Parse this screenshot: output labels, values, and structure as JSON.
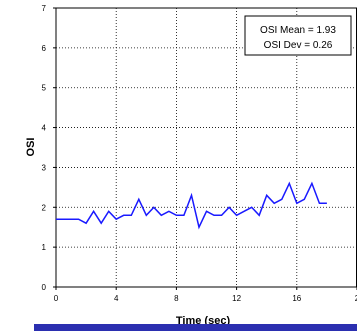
{
  "chart_data": {
    "type": "line",
    "xlabel": "Time (sec)",
    "ylabel": "OSI",
    "xlim": [
      0,
      20
    ],
    "ylim": [
      0,
      7
    ],
    "xticks": [
      "0",
      "4",
      "8",
      "12",
      "16",
      "2"
    ],
    "yticks": [
      "0",
      "1",
      "2",
      "3",
      "4",
      "5",
      "6",
      "7"
    ],
    "grid": true,
    "line_color": "#1a1aff",
    "annotation": {
      "mean_text": "OSI Mean = 1.93",
      "dev_text": "OSI Dev = 0.26"
    },
    "series": [
      {
        "x": [
          0,
          0.5,
          1,
          1.5,
          2,
          2.5,
          3,
          3.5,
          4,
          4.5,
          5,
          5.5,
          6,
          6.5,
          7,
          7.5,
          8,
          8.5,
          9,
          9.5,
          10,
          10.5,
          11,
          11.5,
          12,
          12.5,
          13,
          13.5,
          14,
          14.5,
          15,
          15.5,
          16,
          16.5,
          17,
          17.5,
          18
        ],
        "y": [
          1.7,
          1.7,
          1.7,
          1.7,
          1.6,
          1.9,
          1.6,
          1.9,
          1.7,
          1.8,
          1.8,
          2.2,
          1.8,
          2.0,
          1.8,
          1.9,
          1.8,
          1.8,
          2.3,
          1.5,
          1.9,
          1.8,
          1.8,
          2.0,
          1.8,
          1.9,
          2.0,
          1.8,
          2.3,
          2.1,
          2.2,
          2.6,
          2.1,
          2.2,
          2.6,
          2.1,
          2.1
        ]
      }
    ]
  }
}
